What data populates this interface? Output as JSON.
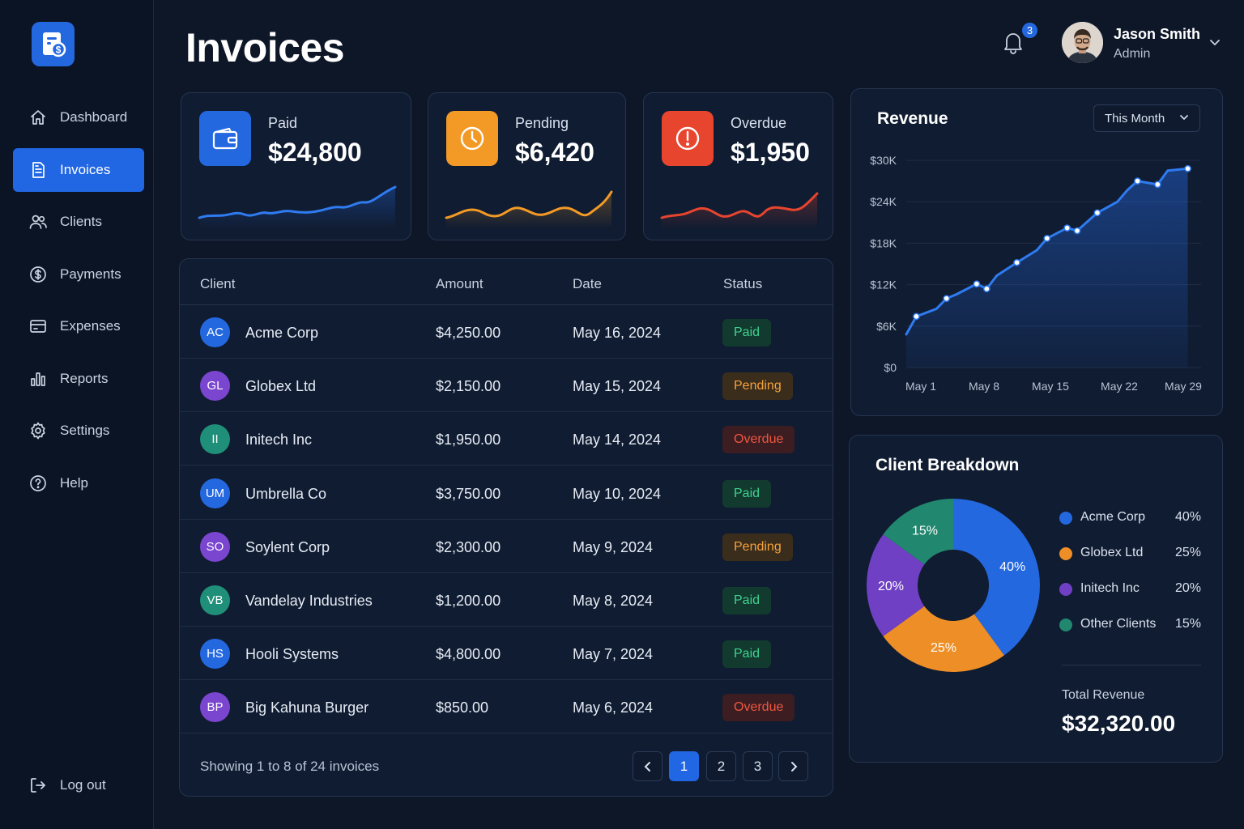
{
  "app": {
    "page_title": "Invoices"
  },
  "sidebar": {
    "items": [
      {
        "label": "Dashboard",
        "icon": "home-icon"
      },
      {
        "label": "Invoices",
        "icon": "document-icon",
        "active": true
      },
      {
        "label": "Clients",
        "icon": "users-icon"
      },
      {
        "label": "Payments",
        "icon": "dollar-circle-icon"
      },
      {
        "label": "Expenses",
        "icon": "credit-card-icon"
      },
      {
        "label": "Reports",
        "icon": "bar-chart-icon"
      },
      {
        "label": "Settings",
        "icon": "gear-icon"
      },
      {
        "label": "Help",
        "icon": "help-circle-icon"
      }
    ],
    "logout_label": "Log out"
  },
  "header": {
    "notification_count": "3",
    "user": {
      "name": "Jason Smith",
      "role": "Admin"
    }
  },
  "stats": [
    {
      "label": "Paid",
      "value": "$24,800",
      "color": "#2468e0",
      "icon": "wallet-icon"
    },
    {
      "label": "Pending",
      "value": "$6,420",
      "color": "#f39a26",
      "icon": "clock-icon"
    },
    {
      "label": "Overdue",
      "value": "$1,950",
      "color": "#e8452f",
      "icon": "alert-circle-icon"
    }
  ],
  "table": {
    "headers": {
      "client": "Client",
      "amount": "Amount",
      "date": "Date",
      "status": "Status"
    },
    "rows": [
      {
        "initials": "AC",
        "client": "Acme Corp",
        "amount": "$4,250.00",
        "date": "May 16, 2024",
        "status": "Paid",
        "avatar_color": "#2468e0"
      },
      {
        "initials": "GL",
        "client": "Globex Ltd",
        "amount": "$2,150.00",
        "date": "May 15, 2024",
        "status": "Pending",
        "avatar_color": "#7a45cf"
      },
      {
        "initials": "II",
        "client": "Initech Inc",
        "amount": "$1,950.00",
        "date": "May 14, 2024",
        "status": "Overdue",
        "avatar_color": "#1f8f7a"
      },
      {
        "initials": "UM",
        "client": "Umbrella Co",
        "amount": "$3,750.00",
        "date": "May 10, 2024",
        "status": "Paid",
        "avatar_color": "#2468e0"
      },
      {
        "initials": "SO",
        "client": "Soylent Corp",
        "amount": "$2,300.00",
        "date": "May 9, 2024",
        "status": "Pending",
        "avatar_color": "#7a45cf"
      },
      {
        "initials": "VB",
        "client": "Vandelay Industries",
        "amount": "$1,200.00",
        "date": "May 8, 2024",
        "status": "Paid",
        "avatar_color": "#1f8f7a"
      },
      {
        "initials": "HS",
        "client": "Hooli Systems",
        "amount": "$4,800.00",
        "date": "May 7, 2024",
        "status": "Paid",
        "avatar_color": "#2468e0"
      },
      {
        "initials": "BP",
        "client": "Big Kahuna Burger",
        "amount": "$850.00",
        "date": "May 6, 2024",
        "status": "Overdue",
        "avatar_color": "#7a45cf"
      }
    ],
    "footer_text": "Showing 1 to 8 of 24 invoices",
    "pages": [
      "1",
      "2",
      "3"
    ],
    "current_page": "1"
  },
  "revenue": {
    "title": "Revenue",
    "period_select": "This Month"
  },
  "breakdown": {
    "title": "Client Breakdown",
    "total_label": "Total Revenue",
    "total_value": "$32,320.00"
  },
  "chart_data": [
    {
      "type": "area",
      "title": "Revenue",
      "x_tick_labels": [
        "May 1",
        "May 8",
        "May 15",
        "May 22",
        "May 29"
      ],
      "y_tick_labels": [
        "$0",
        "$6K",
        "$12K",
        "$18K",
        "$24K",
        "$30K"
      ],
      "ylim": [
        0,
        30000
      ],
      "xlim": [
        1,
        30
      ],
      "grid": true,
      "series": [
        {
          "x": [
            1,
            2,
            4,
            5,
            6,
            8,
            9,
            10,
            12,
            14,
            15,
            17,
            18,
            20,
            22,
            23,
            24,
            26,
            27,
            29
          ],
          "y": [
            4800,
            7400,
            8500,
            10000,
            10600,
            12100,
            11400,
            13300,
            15200,
            17000,
            18700,
            20200,
            19800,
            22400,
            24000,
            25700,
            27000,
            26500,
            28500,
            28800
          ],
          "markers": [
            2,
            5,
            8,
            9,
            12,
            15,
            17,
            18,
            20,
            24,
            26,
            29
          ],
          "color": "#2f7bf0"
        }
      ]
    },
    {
      "type": "pie",
      "donut": true,
      "slices": [
        {
          "label": "Acme Corp",
          "value": 40,
          "display": "40%",
          "color": "#2468e0"
        },
        {
          "label": "Globex Ltd",
          "value": 25,
          "display": "25%",
          "color": "#ed8f26"
        },
        {
          "label": "Initech Inc",
          "value": 20,
          "display": "20%",
          "color": "#7040c4"
        },
        {
          "label": "Other Clients",
          "value": 15,
          "display": "15%",
          "color": "#22876f"
        }
      ]
    }
  ]
}
